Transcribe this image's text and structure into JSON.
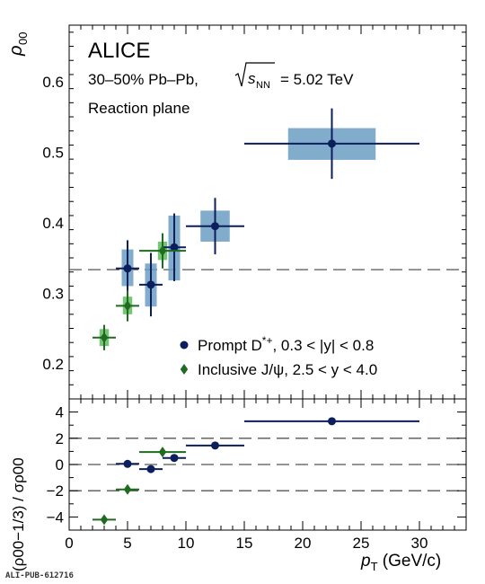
{
  "chart_data": [
    {
      "type": "scatter",
      "panel": "top",
      "ylabel": "ρ",
      "ylabel_sub": "00",
      "ylim": [
        0.15,
        0.68
      ],
      "yticks": [
        "0.2",
        "0.3",
        "0.4",
        "0.5",
        "0.6"
      ],
      "ytick_values": [
        0.2,
        0.3,
        0.4,
        0.5,
        0.6
      ],
      "xlim": [
        0,
        34
      ],
      "reference_line": 0.3333,
      "annotations": {
        "experiment": "ALICE",
        "system_prefix": "30–50% Pb–Pb,",
        "energy_value": "= 5.02 TeV",
        "frame": "Reaction plane"
      },
      "legend": [
        {
          "label_prefix": "Prompt D",
          "label_suffix": ", 0.3 < |y| < 0.8",
          "marker": "circle",
          "color": "#0c1e5b"
        },
        {
          "label_prefix": "Inclusive J/ψ, 2.5 < ",
          "label_suffix": "y < 4.0",
          "marker": "diamond",
          "color": "#1f6b1f"
        }
      ],
      "series": [
        {
          "name": "Prompt D*+",
          "color": "#0c1e5b",
          "box_color": "#6b9ec2",
          "points": [
            {
              "x": 5,
              "xlo": 4,
              "xhi": 6,
              "y": 0.335,
              "stat": 0.04,
              "syst_lo": 0.31,
              "syst_hi": 0.362,
              "box_half_width": 0.5
            },
            {
              "x": 7,
              "xlo": 6,
              "xhi": 8,
              "y": 0.312,
              "stat": 0.045,
              "syst_lo": 0.281,
              "syst_hi": 0.342,
              "box_half_width": 0.5
            },
            {
              "x": 9,
              "xlo": 8,
              "xhi": 10,
              "y": 0.365,
              "stat": 0.048,
              "syst_lo": 0.318,
              "syst_hi": 0.41,
              "box_half_width": 0.5
            },
            {
              "x": 12.5,
              "xlo": 10,
              "xhi": 15,
              "y": 0.395,
              "stat": 0.04,
              "syst_lo": 0.373,
              "syst_hi": 0.417,
              "box_half_width": 1.25
            },
            {
              "x": 22.5,
              "xlo": 15,
              "xhi": 30,
              "y": 0.512,
              "stat": 0.05,
              "syst_lo": 0.489,
              "syst_hi": 0.534,
              "box_half_width": 3.75
            }
          ]
        },
        {
          "name": "Inclusive J/ψ",
          "color": "#1f6b1f",
          "box_color": "#5dbb5d",
          "points": [
            {
              "x": 3,
              "xlo": 2,
              "xhi": 4,
              "y": 0.237,
              "stat": 0.018,
              "syst_lo": 0.225,
              "syst_hi": 0.249,
              "box_half_width": 0.4
            },
            {
              "x": 5,
              "xlo": 4,
              "xhi": 6,
              "y": 0.282,
              "stat": 0.022,
              "syst_lo": 0.27,
              "syst_hi": 0.295,
              "box_half_width": 0.4
            },
            {
              "x": 8,
              "xlo": 6,
              "xhi": 10,
              "y": 0.36,
              "stat": 0.025,
              "syst_lo": 0.347,
              "syst_hi": 0.373,
              "box_half_width": 0.4
            }
          ]
        }
      ]
    },
    {
      "type": "scatter",
      "panel": "bottom",
      "ylabel": "(ρ00−1/3) / σρ00",
      "ylim": [
        -5,
        5
      ],
      "yticks": [
        "−4",
        "−2",
        "0",
        "2",
        "4"
      ],
      "ytick_values": [
        -4,
        -2,
        0,
        2,
        4
      ],
      "xlim": [
        0,
        34
      ],
      "xlabel": "(GeV/c)",
      "xlabel_symbol": "p",
      "xlabel_sub": "T",
      "xticks": [
        "0",
        "5",
        "10",
        "15",
        "20",
        "25",
        "30"
      ],
      "xtick_values": [
        0,
        5,
        10,
        15,
        20,
        25,
        30
      ],
      "reference_lines": [
        -2,
        0,
        2
      ],
      "series": [
        {
          "name": "Prompt D*+",
          "color": "#0c1e5b",
          "points": [
            {
              "x": 5,
              "xlo": 4,
              "xhi": 6,
              "y": 0.05
            },
            {
              "x": 7,
              "xlo": 6,
              "xhi": 8,
              "y": -0.35
            },
            {
              "x": 9,
              "xlo": 8,
              "xhi": 10,
              "y": 0.5
            },
            {
              "x": 12.5,
              "xlo": 10,
              "xhi": 15,
              "y": 1.45
            },
            {
              "x": 22.5,
              "xlo": 15,
              "xhi": 30,
              "y": 3.3
            }
          ]
        },
        {
          "name": "Inclusive J/ψ",
          "color": "#1f6b1f",
          "points": [
            {
              "x": 3,
              "xlo": 2,
              "xhi": 4,
              "y": -4.2
            },
            {
              "x": 5,
              "xlo": 4,
              "xhi": 6,
              "y": -1.9
            },
            {
              "x": 8,
              "xlo": 6,
              "xhi": 10,
              "y": 0.95
            }
          ]
        }
      ]
    }
  ],
  "footer": {
    "id": "ALI-PUB-612716"
  }
}
